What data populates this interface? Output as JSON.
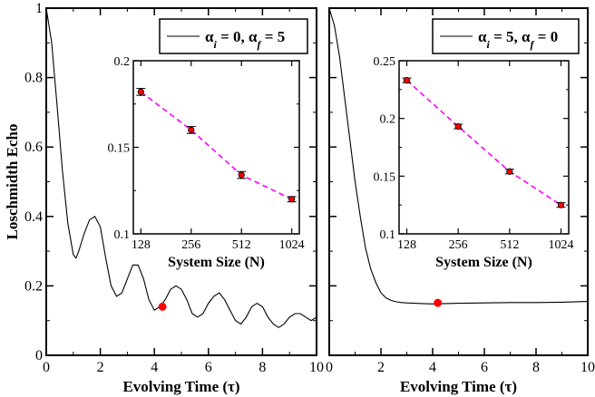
{
  "chart_data": [
    {
      "type": "line",
      "panel": "left",
      "ylabel": "Loschmidth Echo",
      "xlabel": "Evolving Time (τ)",
      "xlim": [
        0,
        10
      ],
      "ylim": [
        0,
        1
      ],
      "xticks": [
        "0",
        "2",
        "4",
        "6",
        "8",
        "10"
      ],
      "yticks": [
        "0",
        "0.2",
        "0.4",
        "0.6",
        "0.8",
        "1"
      ],
      "legend": {
        "alpha_sym": "α",
        "i_sub": "i",
        "i_val": " = 0,  ",
        "f_sub": "f",
        "f_val": " = 5"
      },
      "series": [
        {
          "name": "αi = 0, αf = 5",
          "x": [
            0,
            0.2,
            0.4,
            0.6,
            0.8,
            1.0,
            1.1,
            1.2,
            1.4,
            1.6,
            1.8,
            2.0,
            2.2,
            2.4,
            2.6,
            2.8,
            3.0,
            3.2,
            3.4,
            3.6,
            3.8,
            4.0,
            4.2,
            4.4,
            4.6,
            4.8,
            5.0,
            5.2,
            5.4,
            5.6,
            5.8,
            6.0,
            6.2,
            6.4,
            6.6,
            6.8,
            7.0,
            7.2,
            7.4,
            7.6,
            7.8,
            8.0,
            8.2,
            8.4,
            8.6,
            8.8,
            9.0,
            9.2,
            9.4,
            9.6,
            9.8,
            10.0
          ],
          "y": [
            1.0,
            0.9,
            0.72,
            0.53,
            0.38,
            0.29,
            0.28,
            0.3,
            0.35,
            0.39,
            0.4,
            0.37,
            0.28,
            0.2,
            0.17,
            0.18,
            0.22,
            0.26,
            0.26,
            0.22,
            0.16,
            0.13,
            0.14,
            0.16,
            0.19,
            0.2,
            0.19,
            0.16,
            0.12,
            0.11,
            0.12,
            0.15,
            0.17,
            0.18,
            0.16,
            0.13,
            0.1,
            0.09,
            0.11,
            0.14,
            0.15,
            0.14,
            0.11,
            0.09,
            0.08,
            0.09,
            0.11,
            0.12,
            0.12,
            0.11,
            0.1,
            0.11
          ]
        }
      ],
      "marker": {
        "x": 4.3,
        "y": 0.14
      },
      "inset": {
        "xlabel": "System Size (N)",
        "xticks": [
          "128",
          "256",
          "512",
          "1024"
        ],
        "yticks": [
          "0.1",
          "0.15",
          "0.2"
        ],
        "ylim": [
          0.1,
          0.2
        ],
        "x": [
          128,
          256,
          512,
          1024
        ],
        "y": [
          0.182,
          0.16,
          0.134,
          0.12
        ],
        "err": [
          0.002,
          0.002,
          0.002,
          0.0015
        ]
      }
    },
    {
      "type": "line",
      "panel": "right",
      "xlabel": "Evolving Time (τ)",
      "xlim": [
        0,
        10
      ],
      "ylim": [
        0,
        1
      ],
      "xticks": [
        "0",
        "2",
        "4",
        "6",
        "8",
        "10"
      ],
      "legend": {
        "alpha_sym": "α",
        "i_sub": "i",
        "i_val": " = 5,  ",
        "f_sub": "f",
        "f_val": " = 0"
      },
      "series": [
        {
          "name": "αi = 5, αf = 0",
          "x": [
            0,
            0.2,
            0.4,
            0.6,
            0.8,
            1.0,
            1.2,
            1.4,
            1.6,
            1.8,
            2.0,
            2.2,
            2.4,
            2.6,
            2.8,
            3.0,
            3.3,
            3.6,
            4.0,
            4.5,
            5.0,
            6.0,
            7.0,
            8.0,
            9.0,
            10.0
          ],
          "y": [
            1.0,
            0.95,
            0.86,
            0.74,
            0.62,
            0.5,
            0.4,
            0.31,
            0.25,
            0.21,
            0.18,
            0.165,
            0.158,
            0.154,
            0.152,
            0.151,
            0.15,
            0.149,
            0.148,
            0.149,
            0.15,
            0.151,
            0.152,
            0.152,
            0.153,
            0.155
          ]
        }
      ],
      "marker": {
        "x": 4.2,
        "y": 0.151
      },
      "inset": {
        "xlabel": "System Size (N)",
        "xticks": [
          "128",
          "256",
          "512",
          "1024"
        ],
        "yticks": [
          "0.1",
          "0.15",
          "0.2",
          "0.25"
        ],
        "ylim": [
          0.1,
          0.25
        ],
        "x": [
          128,
          256,
          512,
          1024
        ],
        "y": [
          0.233,
          0.193,
          0.154,
          0.125
        ],
        "err": [
          0.002,
          0.002,
          0.002,
          0.002
        ]
      }
    }
  ]
}
